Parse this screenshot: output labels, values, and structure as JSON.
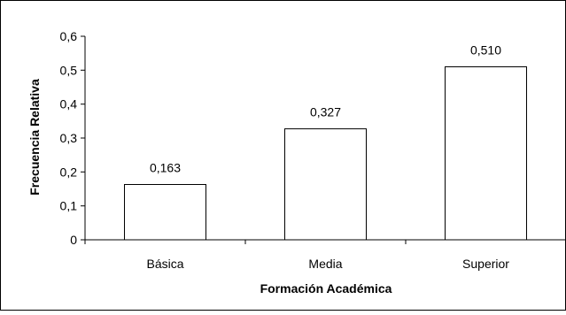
{
  "chart_data": {
    "type": "bar",
    "title": "",
    "xlabel": "Formación Académica",
    "ylabel": "Frecuencia Relativa",
    "categories": [
      "Básica",
      "Media",
      "Superior"
    ],
    "values": [
      0.163,
      0.327,
      0.51
    ],
    "value_labels": [
      "0,163",
      "0,327",
      "0,510"
    ],
    "ylim": [
      0,
      0.6
    ],
    "yticks": [
      0,
      0.1,
      0.2,
      0.3,
      0.4,
      0.5,
      0.6
    ],
    "ytick_labels": [
      "0",
      "0,1",
      "0,2",
      "0,3",
      "0,4",
      "0,5",
      "0,6"
    ],
    "grid": false,
    "legend": "none",
    "colors": {
      "bar_fill": "#ffffff",
      "bar_stroke": "#000000",
      "axis": "#000000",
      "frame": "#000000"
    }
  }
}
